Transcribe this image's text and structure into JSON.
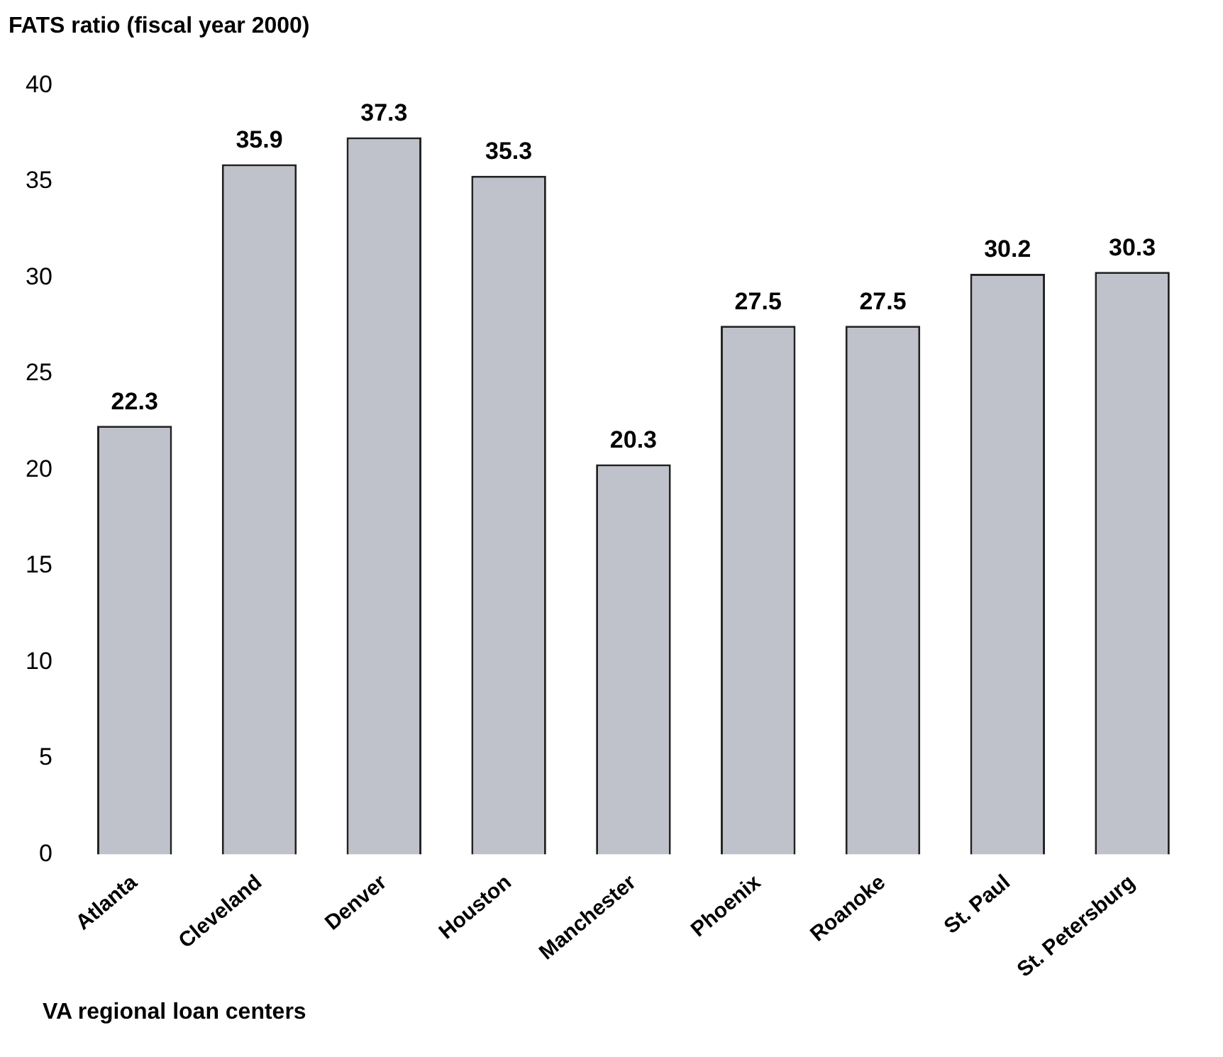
{
  "chart_data": {
    "type": "bar",
    "ylabel": "FATS ratio (fiscal year 2000)",
    "xlabel": "VA regional loan centers",
    "categories": [
      "Atlanta",
      "Cleveland",
      "Denver",
      "Houston",
      "Manchester",
      "Phoenix",
      "Roanoke",
      "St. Paul",
      "St. Petersburg"
    ],
    "values": [
      22.3,
      35.9,
      37.3,
      35.3,
      20.3,
      27.5,
      27.5,
      30.2,
      30.3
    ],
    "color": "#c0c2cb",
    "ylim": [
      0,
      40
    ],
    "yticks": [
      0,
      5,
      10,
      15,
      20,
      25,
      30,
      35,
      40
    ],
    "grid": false,
    "legend": false,
    "data_labels": true
  }
}
